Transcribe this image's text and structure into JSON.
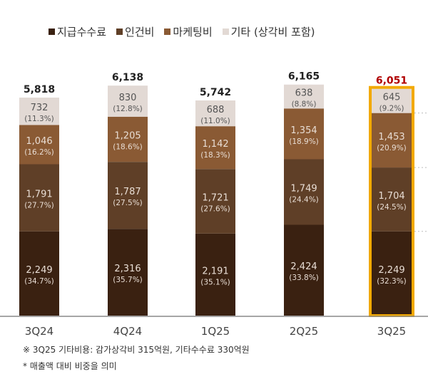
{
  "chart_data": {
    "type": "bar",
    "stacked": true,
    "categories": [
      "3Q24",
      "4Q24",
      "1Q25",
      "2Q25",
      "3Q25"
    ],
    "series": [
      {
        "name": "지급수수료",
        "color": "#3a2111",
        "values": [
          2249,
          2316,
          2191,
          2424,
          2249
        ],
        "shares": [
          "(34.7%)",
          "(35.7%)",
          "(35.1%)",
          "(33.8%)",
          "(32.3%)"
        ]
      },
      {
        "name": "인건비",
        "color": "#5f3f27",
        "values": [
          1791,
          1787,
          1721,
          1749,
          1704
        ],
        "shares": [
          "(27.7%)",
          "(27.5%)",
          "(27.6%)",
          "(24.4%)",
          "(24.5%)"
        ]
      },
      {
        "name": "마케팅비",
        "color": "#8a5a34",
        "values": [
          1046,
          1205,
          1142,
          1354,
          1453
        ],
        "shares": [
          "(16.2%)",
          "(18.6%)",
          "(18.3%)",
          "(18.9%)",
          "(20.9%)"
        ]
      },
      {
        "name": "기타 (상각비 포함)",
        "color": "#e2d9d4",
        "values": [
          732,
          830,
          688,
          638,
          645
        ],
        "shares": [
          "(11.3%)",
          "(12.8%)",
          "(11.0%)",
          "(8.8%)",
          "(9.2%)"
        ]
      }
    ],
    "totals": [
      5818,
      6138,
      5742,
      6165,
      6051
    ],
    "total_labels": [
      "5,818",
      "6,138",
      "5,742",
      "6,165",
      "6,051"
    ],
    "highlight_category": "3Q25",
    "highlight_color": "#f2a900",
    "highlight_total_color": "#b00000",
    "legend_position": "top",
    "grid": false
  },
  "footnotes": [
    "※ 3Q25 기타비용: 감가상각비 315억원, 기타수수료 330억원",
    "* 매출액 대비 비중을 의미"
  ]
}
